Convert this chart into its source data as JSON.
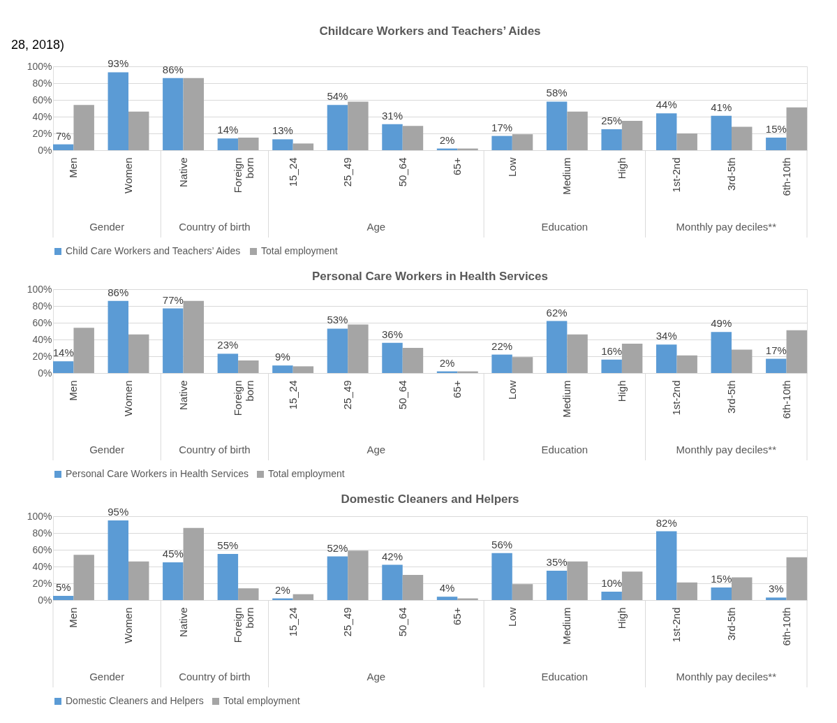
{
  "chart_data": [
    {
      "type": "bar",
      "title": "Childcare Workers and Teachers’ Aides",
      "categories": [
        "Men",
        "Women",
        "Native",
        "Foreign born",
        "15_24",
        "25_49",
        "50_64",
        "65+",
        "Low",
        "Medium",
        "High",
        "1st-2nd",
        "3rd-5th",
        "6th-10th"
      ],
      "series": [
        {
          "name": "Child Care Workers and Teachers’ Aides",
          "color": "#5b9bd5",
          "values": [
            7,
            93,
            86,
            14,
            13,
            54,
            31,
            2,
            17,
            58,
            25,
            44,
            41,
            15
          ],
          "value_labels": [
            "7%",
            "93%",
            "86%",
            "14%",
            "13%",
            "54%",
            "31%",
            "2%",
            "17%",
            "58%",
            "25%",
            "44%",
            "41%",
            "15%"
          ]
        },
        {
          "name": "Total employment",
          "color": "#a5a5a5",
          "values": [
            54,
            46,
            86,
            15,
            8,
            58,
            29,
            2,
            19,
            46,
            35,
            20,
            28,
            51
          ]
        }
      ],
      "ylim": [
        0,
        100
      ],
      "yticks": [
        {
          "value": 0,
          "label": "0%"
        },
        {
          "value": 20,
          "label": "20%"
        },
        {
          "value": 40,
          "label": "40%"
        },
        {
          "value": 60,
          "label": "60%"
        },
        {
          "value": 80,
          "label": "80%"
        },
        {
          "value": 100,
          "label": "100%"
        }
      ],
      "grid": "y",
      "legend": "bottom",
      "annotations": [
        "Gender",
        "Country of birth",
        "Age",
        "Education",
        "Monthly pay deciles**",
        "28, 2018)"
      ]
    },
    {
      "type": "bar",
      "title": "Personal Care Workers in Health Services",
      "categories": [
        "Men",
        "Women",
        "Native",
        "Foreign born",
        "15_24",
        "25_49",
        "50_64",
        "65+",
        "Low",
        "Medium",
        "High",
        "1st-2nd",
        "3rd-5th",
        "6th-10th"
      ],
      "series": [
        {
          "name": "Personal Care Workers in Health Services",
          "color": "#5b9bd5",
          "values": [
            14,
            86,
            77,
            23,
            9,
            53,
            36,
            2,
            22,
            62,
            16,
            34,
            49,
            17
          ],
          "value_labels": [
            "14%",
            "86%",
            "77%",
            "23%",
            "9%",
            "53%",
            "36%",
            "2%",
            "22%",
            "62%",
            "16%",
            "34%",
            "49%",
            "17%"
          ]
        },
        {
          "name": "Total employment",
          "color": "#a5a5a5",
          "values": [
            54,
            46,
            86,
            15,
            8,
            58,
            30,
            2,
            19,
            46,
            35,
            21,
            28,
            51
          ]
        }
      ],
      "ylim": [
        0,
        100
      ],
      "yticks": [
        {
          "value": 0,
          "label": "0%"
        },
        {
          "value": 20,
          "label": "20%"
        },
        {
          "value": 40,
          "label": "40%"
        },
        {
          "value": 60,
          "label": "60%"
        },
        {
          "value": 80,
          "label": "80%"
        },
        {
          "value": 100,
          "label": "100%"
        }
      ],
      "grid": "y",
      "legend": "bottom",
      "annotations": [
        "Gender",
        "Country of birth",
        "Age",
        "Education",
        "Monthly pay deciles**"
      ]
    },
    {
      "type": "bar",
      "title": "Domestic Cleaners and Helpers",
      "categories": [
        "Men",
        "Women",
        "Native",
        "Foreign born",
        "15_24",
        "25_49",
        "50_64",
        "65+",
        "Low",
        "Medium",
        "High",
        "1st-2nd",
        "3rd-5th",
        "6th-10th"
      ],
      "series": [
        {
          "name": "Domestic Cleaners and Helpers",
          "color": "#5b9bd5",
          "values": [
            5,
            95,
            45,
            55,
            2,
            52,
            42,
            4,
            56,
            35,
            10,
            82,
            15,
            3
          ],
          "value_labels": [
            "5%",
            "95%",
            "45%",
            "55%",
            "2%",
            "52%",
            "42%",
            "4%",
            "56%",
            "35%",
            "10%",
            "82%",
            "15%",
            "3%"
          ]
        },
        {
          "name": "Total employment",
          "color": "#a5a5a5",
          "values": [
            54,
            46,
            86,
            14,
            7,
            59,
            30,
            2,
            19,
            46,
            34,
            21,
            27,
            51
          ]
        }
      ],
      "ylim": [
        0,
        100
      ],
      "yticks": [
        {
          "value": 0,
          "label": "0%"
        },
        {
          "value": 20,
          "label": "20%"
        },
        {
          "value": 40,
          "label": "40%"
        },
        {
          "value": 60,
          "label": "60%"
        },
        {
          "value": 80,
          "label": "80%"
        },
        {
          "value": 100,
          "label": "100%"
        }
      ],
      "grid": "y",
      "legend": "bottom",
      "annotations": [
        "Gender",
        "Country of birth",
        "Age",
        "Education",
        "Monthly pay deciles**"
      ]
    }
  ]
}
